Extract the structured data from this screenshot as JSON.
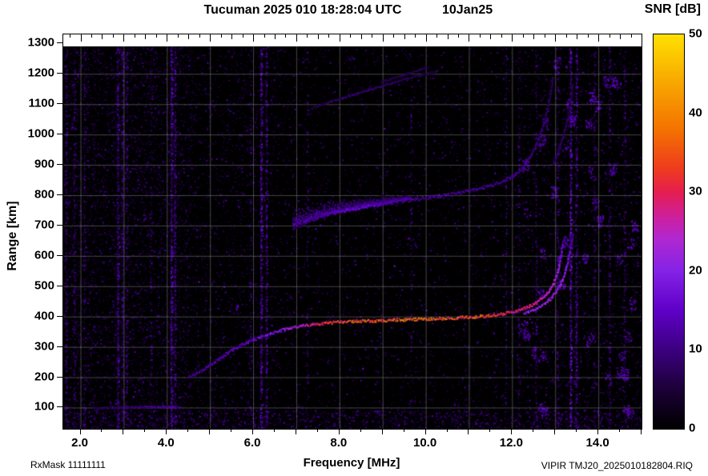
{
  "header": {
    "title": "Tucuman 2025 010 18:28:04 UTC",
    "date": "10Jan25",
    "colorbar_title": "SNR [dB]"
  },
  "ylabel": "Range [km]",
  "footer": {
    "rx_mask": "RxMask 11111111",
    "xlabel": "Frequency [MHz]",
    "file": "VIPIR  TMJ20_2025010182804.RIQ"
  },
  "chart_data": {
    "type": "heatmap",
    "title": "Tucuman 2025 010 18:28:04 UTC  10Jan25",
    "xlabel": "Frequency [MHz]",
    "ylabel": "Range [km]",
    "xlim": [
      1.6,
      15.0
    ],
    "ylim": [
      30,
      1330
    ],
    "x_ticks": [
      {
        "v": 2,
        "label": "2.0"
      },
      {
        "v": 4,
        "label": "4.0"
      },
      {
        "v": 6,
        "label": "6.0"
      },
      {
        "v": 8,
        "label": "8.0"
      },
      {
        "v": 10,
        "label": "10.0"
      },
      {
        "v": 12,
        "label": "12.0"
      },
      {
        "v": 14,
        "label": "14.0"
      }
    ],
    "y_ticks": [
      100,
      200,
      300,
      400,
      500,
      600,
      700,
      800,
      900,
      1000,
      1100,
      1200,
      1300
    ],
    "grid": true,
    "background": "#000000",
    "grid_color": "#d2d2d2",
    "colorbar": {
      "label": "SNR [dB]",
      "min": 0,
      "max": 50,
      "ticks": [
        0,
        10,
        20,
        30,
        40,
        50
      ]
    },
    "colormap": [
      {
        "t": 0.0,
        "c": "#000000"
      },
      {
        "t": 0.1,
        "c": "#1c0038"
      },
      {
        "t": 0.2,
        "c": "#3c0080"
      },
      {
        "t": 0.3,
        "c": "#5f00c8"
      },
      {
        "t": 0.4,
        "c": "#8423e6"
      },
      {
        "t": 0.48,
        "c": "#b028d2"
      },
      {
        "t": 0.54,
        "c": "#cf1f9a"
      },
      {
        "t": 0.6,
        "c": "#e51e50"
      },
      {
        "t": 0.66,
        "c": "#ee3c1e"
      },
      {
        "t": 0.76,
        "c": "#f47300"
      },
      {
        "t": 0.88,
        "c": "#f8a800"
      },
      {
        "t": 1.0,
        "c": "#ffe000"
      }
    ],
    "noise": {
      "speckles": 34000,
      "bottom_band": 1600,
      "clusters": 50
    },
    "interference_columns": [
      {
        "f": 1.66,
        "d": 0.5,
        "s": 12
      },
      {
        "f": 1.85,
        "d": 0.4,
        "s": 12
      },
      {
        "f": 2.08,
        "d": 0.25,
        "s": 14
      },
      {
        "f": 2.86,
        "d": 0.8,
        "s": 16
      },
      {
        "f": 2.96,
        "d": 0.5,
        "s": 14
      },
      {
        "f": 3.06,
        "d": 0.35,
        "s": 13
      },
      {
        "f": 3.62,
        "d": 0.2,
        "s": 12
      },
      {
        "f": 4.1,
        "d": 1.0,
        "s": 18
      },
      {
        "f": 4.18,
        "d": 0.6,
        "s": 15
      },
      {
        "f": 5.93,
        "d": 0.25,
        "s": 12
      },
      {
        "f": 6.18,
        "d": 0.95,
        "s": 18
      },
      {
        "f": 6.3,
        "d": 0.6,
        "s": 15
      },
      {
        "f": 7.25,
        "d": 0.2,
        "s": 12
      },
      {
        "f": 9.65,
        "d": 0.18,
        "s": 12
      },
      {
        "f": 11.85,
        "d": 0.25,
        "s": 13
      },
      {
        "f": 12.15,
        "d": 0.3,
        "s": 13
      },
      {
        "f": 12.55,
        "d": 0.3,
        "s": 13
      },
      {
        "f": 13.05,
        "d": 0.35,
        "s": 14
      },
      {
        "f": 13.35,
        "d": 0.9,
        "s": 20
      },
      {
        "f": 13.48,
        "d": 0.6,
        "s": 16
      },
      {
        "f": 13.9,
        "d": 0.3,
        "s": 13
      },
      {
        "f": 14.25,
        "d": 0.35,
        "s": 14
      },
      {
        "f": 14.6,
        "d": 0.3,
        "s": 13
      },
      {
        "f": 15.0,
        "d": 0.25,
        "s": 12
      }
    ],
    "clouds": [
      {
        "base": [
          [
            6.9,
            700
          ],
          [
            7.8,
            742
          ],
          [
            8.7,
            766
          ],
          [
            9.6,
            790
          ]
        ],
        "spread": [
          70,
          55,
          35,
          15
        ],
        "n": 1500
      }
    ],
    "traces": [
      {
        "name": "sporadic-E",
        "width": 2.5,
        "spread": 2,
        "points": [
          [
            2.3,
            99,
            6
          ],
          [
            2.7,
            101,
            7
          ],
          [
            3.05,
            103,
            9
          ],
          [
            3.4,
            104,
            10
          ],
          [
            3.75,
            105,
            12
          ],
          [
            4.05,
            105,
            13
          ],
          [
            4.3,
            104,
            10
          ]
        ]
      },
      {
        "name": "F-layer-O-mode",
        "width": 3.5,
        "spread": 2.5,
        "points": [
          [
            4.5,
            202,
            11
          ],
          [
            4.75,
            220,
            12
          ],
          [
            5.0,
            243,
            13
          ],
          [
            5.25,
            268,
            14
          ],
          [
            5.5,
            292,
            15
          ],
          [
            5.75,
            310,
            15
          ],
          [
            6.0,
            326,
            16
          ],
          [
            6.3,
            342,
            17
          ],
          [
            6.6,
            356,
            19
          ],
          [
            6.9,
            366,
            22
          ],
          [
            7.2,
            374,
            26
          ],
          [
            7.5,
            379,
            30
          ],
          [
            7.9,
            383,
            34
          ],
          [
            8.3,
            386,
            36
          ],
          [
            8.7,
            388,
            35
          ],
          [
            9.1,
            390,
            36
          ],
          [
            9.5,
            392,
            37
          ],
          [
            9.9,
            394,
            36
          ],
          [
            10.3,
            396,
            35
          ],
          [
            10.7,
            398,
            36
          ],
          [
            11.1,
            401,
            35
          ],
          [
            11.5,
            406,
            33
          ],
          [
            11.8,
            412,
            31
          ],
          [
            12.1,
            421,
            29
          ],
          [
            12.35,
            433,
            28
          ],
          [
            12.55,
            448,
            27
          ],
          [
            12.72,
            466,
            26
          ],
          [
            12.85,
            488,
            25
          ],
          [
            12.95,
            513,
            24
          ],
          [
            13.03,
            543,
            22
          ],
          [
            13.09,
            578,
            20
          ],
          [
            13.13,
            615,
            17
          ],
          [
            13.16,
            650,
            13
          ]
        ]
      },
      {
        "name": "F-layer-X-mode",
        "width": 3,
        "spread": 2,
        "points": [
          [
            12.25,
            412,
            18
          ],
          [
            12.5,
            425,
            20
          ],
          [
            12.7,
            441,
            22
          ],
          [
            12.87,
            460,
            23
          ],
          [
            13.0,
            482,
            23
          ],
          [
            13.1,
            508,
            22
          ],
          [
            13.19,
            538,
            21
          ],
          [
            13.26,
            572,
            19
          ],
          [
            13.32,
            610,
            16
          ],
          [
            13.37,
            648,
            13
          ],
          [
            13.4,
            680,
            10
          ]
        ]
      },
      {
        "name": "second-hop-O",
        "width": 4,
        "spread": 5,
        "points": [
          [
            6.9,
            692,
            8
          ],
          [
            7.2,
            712,
            9
          ],
          [
            7.5,
            728,
            11
          ],
          [
            7.8,
            741,
            13
          ],
          [
            8.1,
            751,
            15
          ],
          [
            8.4,
            759,
            16
          ],
          [
            8.7,
            766,
            15
          ],
          [
            9.0,
            773,
            13
          ],
          [
            9.35,
            781,
            12
          ],
          [
            9.7,
            788,
            12
          ],
          [
            10.05,
            795,
            11
          ],
          [
            10.4,
            802,
            12
          ],
          [
            10.75,
            810,
            11
          ],
          [
            11.1,
            819,
            12
          ],
          [
            11.45,
            831,
            11
          ],
          [
            11.75,
            846,
            11
          ],
          [
            12.0,
            865,
            11
          ],
          [
            12.2,
            890,
            10
          ],
          [
            12.38,
            922,
            10
          ],
          [
            12.52,
            960,
            9
          ],
          [
            12.64,
            1002,
            9
          ],
          [
            12.74,
            1048,
            8
          ],
          [
            12.82,
            1098,
            8
          ],
          [
            12.89,
            1148,
            7
          ],
          [
            12.94,
            1195,
            6
          ]
        ]
      },
      {
        "name": "second-hop-X-tail",
        "width": 3,
        "spread": 4,
        "points": [
          [
            12.95,
            905,
            8
          ],
          [
            13.07,
            950,
            8
          ],
          [
            13.18,
            1000,
            8
          ],
          [
            13.27,
            1055,
            7
          ],
          [
            13.34,
            1112,
            7
          ],
          [
            13.4,
            1168,
            6
          ]
        ]
      },
      {
        "name": "oblique-streak-1",
        "width": 2.5,
        "spread": 2,
        "points": [
          [
            7.35,
            1090,
            7
          ],
          [
            7.9,
            1115,
            8
          ],
          [
            8.5,
            1142,
            9
          ],
          [
            9.1,
            1168,
            8
          ],
          [
            9.7,
            1192,
            7
          ],
          [
            10.25,
            1210,
            6
          ]
        ]
      },
      {
        "name": "oblique-streak-2",
        "width": 2,
        "spread": 2,
        "points": [
          [
            8.95,
            1175,
            6
          ],
          [
            9.5,
            1200,
            7
          ],
          [
            10.05,
            1225,
            6
          ]
        ]
      },
      {
        "name": "artifact-dash",
        "width": 2,
        "spread": 1.5,
        "points": [
          [
            5.6,
            426,
            12
          ],
          [
            5.64,
            442,
            13
          ]
        ]
      }
    ]
  }
}
